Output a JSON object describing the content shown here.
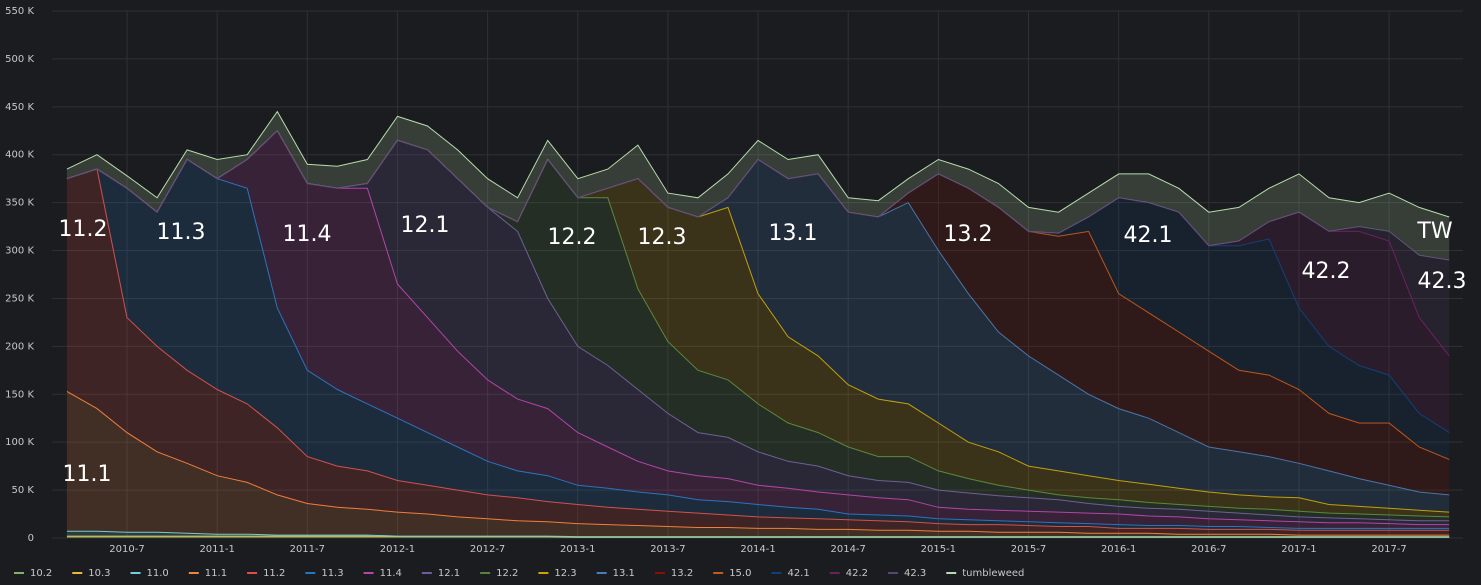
{
  "chart_data": {
    "type": "stacked-area",
    "x": [
      "2010-3",
      "2010-5",
      "2010-7",
      "2010-9",
      "2010-11",
      "2011-1",
      "2011-3",
      "2011-5",
      "2011-7",
      "2011-9",
      "2011-11",
      "2012-1",
      "2012-3",
      "2012-5",
      "2012-7",
      "2012-9",
      "2012-11",
      "2013-1",
      "2013-3",
      "2013-5",
      "2013-7",
      "2013-9",
      "2013-11",
      "2014-1",
      "2014-3",
      "2014-5",
      "2014-7",
      "2014-9",
      "2014-11",
      "2015-1",
      "2015-3",
      "2015-5",
      "2015-7",
      "2015-9",
      "2015-11",
      "2016-1",
      "2016-3",
      "2016-5",
      "2016-7",
      "2016-9",
      "2016-11",
      "2017-1",
      "2017-3",
      "2017-5",
      "2017-7",
      "2017-9",
      "2017-11"
    ],
    "xticks": [
      "2010-7",
      "2011-1",
      "2011-7",
      "2012-1",
      "2012-7",
      "2013-1",
      "2013-7",
      "2014-1",
      "2014-7",
      "2015-1",
      "2015-7",
      "2016-1",
      "2016-7",
      "2017-1",
      "2017-7"
    ],
    "ylim": [
      0,
      550
    ],
    "yticks": [
      0,
      {
        "value": 50,
        "label": "50 K"
      },
      {
        "value": 100,
        "label": "100 K"
      },
      {
        "value": 150,
        "label": "150 K"
      },
      {
        "value": 200,
        "label": "200 K"
      },
      {
        "value": 250,
        "label": "250 K"
      },
      {
        "value": 300,
        "label": "300 K"
      },
      {
        "value": 350,
        "label": "350 K"
      },
      {
        "value": 400,
        "label": "400 K"
      },
      {
        "value": 450,
        "label": "450 K"
      },
      {
        "value": 500,
        "label": "500 K"
      },
      {
        "value": 550,
        "label": "550 K"
      }
    ],
    "grid": true,
    "legend": "bottom",
    "series": [
      {
        "name": "10.2",
        "color": "#7eb26d",
        "values": [
          1,
          1,
          1,
          1,
          1,
          1,
          1,
          1,
          1,
          1,
          1,
          1,
          1,
          1,
          1,
          1,
          1,
          0.5,
          0.5,
          0.5,
          0.5,
          0.5,
          0.5,
          0.5,
          0.5,
          0.5,
          0.5,
          0.5,
          0.5,
          0.5,
          0.5,
          0.5,
          0.5,
          0.5,
          0.5,
          0.5,
          0.5,
          0.5,
          0.5,
          0.5,
          0.5,
          0.5,
          0.5,
          0.5,
          0.5,
          0.5,
          0.5
        ]
      },
      {
        "name": "10.3",
        "color": "#eab839",
        "values": [
          1,
          1,
          1,
          1,
          1,
          1,
          1,
          1,
          1,
          1,
          1,
          0.5,
          0.5,
          0.5,
          0.5,
          0.5,
          0.5,
          0.5,
          0.5,
          0.5,
          0.5,
          0.5,
          0.5,
          0.5,
          0.5,
          0.5,
          0.5,
          0.5,
          0.5,
          0.5,
          0.5,
          0.5,
          0.5,
          0.5,
          0.5,
          0.5,
          0.5,
          0.5,
          0.5,
          0.5,
          0.5,
          0.5,
          0.5,
          0.5,
          0.5,
          0.5,
          0.5
        ]
      },
      {
        "name": "11.0",
        "color": "#6ed0e0",
        "values": [
          5,
          5,
          4,
          4,
          3,
          2,
          2,
          1,
          1,
          1,
          1,
          0.5,
          0.5,
          0.5,
          0.5,
          0.5,
          0.5,
          0.5,
          0.5,
          0.5,
          0.5,
          0.5,
          0.5,
          0.5,
          0.5,
          0.5,
          0.5,
          0.5,
          0.5,
          0.5,
          0.5,
          0.5,
          0.5,
          0.5,
          0.5,
          0.5,
          0.5,
          0.5,
          0.5,
          0.5,
          0.5,
          0.5,
          0.5,
          0.5,
          0.5,
          0.5,
          0.5
        ]
      },
      {
        "name": "11.1",
        "color": "#ef843c",
        "values": [
          146,
          128,
          104,
          84,
          73,
          61,
          54,
          42,
          33,
          29,
          27,
          25,
          23,
          20,
          18,
          16,
          15,
          13.5,
          12.5,
          11.5,
          10.5,
          9.5,
          9.5,
          8.5,
          8.5,
          7.5,
          7.5,
          6.5,
          6.5,
          5.5,
          5.5,
          4.5,
          4.5,
          4.5,
          3.5,
          3.5,
          3.5,
          2.5,
          2.5,
          2.5,
          2.5,
          1.5,
          1.5,
          1.5,
          1.5,
          1.5,
          1.5
        ]
      },
      {
        "name": "11.2",
        "color": "#e24d42",
        "values": [
          222,
          250,
          120,
          110,
          97,
          90,
          82,
          70,
          49,
          43,
          40,
          33,
          30,
          28,
          25,
          24,
          21,
          20,
          18,
          17,
          16,
          15,
          13,
          12,
          11,
          11,
          10,
          10,
          9,
          8,
          7,
          8,
          7,
          6,
          7,
          5,
          5,
          6,
          5,
          5,
          5,
          5,
          5,
          5,
          5,
          5,
          5
        ]
      },
      {
        "name": "11.3",
        "color": "#1f78c1",
        "values": [
          0,
          0,
          135,
          140,
          220,
          220,
          225,
          125,
          90,
          80,
          70,
          65,
          55,
          45,
          35,
          28,
          27,
          20,
          20,
          18,
          17,
          14,
          14,
          13,
          11,
          10,
          6,
          6,
          6,
          5,
          5,
          4,
          4,
          4,
          3,
          4,
          3,
          3,
          3,
          3,
          2,
          2,
          2,
          2,
          2,
          2,
          2
        ]
      },
      {
        "name": "11.4",
        "color": "#ba43a9",
        "values": [
          0,
          0,
          0,
          0,
          0,
          0,
          30,
          185,
          195,
          210,
          225,
          140,
          120,
          100,
          85,
          75,
          70,
          55,
          43,
          32,
          25,
          25,
          24,
          20,
          20,
          18,
          20,
          18,
          17,
          12,
          11,
          11,
          11,
          11,
          11,
          11,
          10,
          9,
          8,
          7,
          7,
          7,
          6,
          6,
          5,
          4,
          4
        ]
      },
      {
        "name": "12.1",
        "color": "#705da0",
        "values": [
          0,
          0,
          0,
          0,
          0,
          0,
          0,
          0,
          0,
          0,
          5,
          150,
          175,
          180,
          180,
          175,
          115,
          90,
          85,
          75,
          60,
          45,
          43,
          35,
          28,
          27,
          20,
          18,
          18,
          18,
          17,
          15,
          14,
          13,
          10,
          8,
          8,
          8,
          8,
          7,
          6,
          5,
          5,
          4,
          4,
          4,
          4
        ]
      },
      {
        "name": "12.2",
        "color": "#508642",
        "values": [
          0,
          0,
          0,
          0,
          0,
          0,
          0,
          0,
          0,
          0,
          0,
          0,
          0,
          0,
          0,
          10,
          145,
          155,
          175,
          105,
          75,
          65,
          60,
          50,
          40,
          35,
          30,
          25,
          27,
          20,
          15,
          11,
          8,
          5,
          6,
          7,
          6,
          5,
          5,
          5,
          6,
          6,
          5,
          5,
          5,
          5,
          4
        ]
      },
      {
        "name": "12.3",
        "color": "#cca300",
        "values": [
          0,
          0,
          0,
          0,
          0,
          0,
          0,
          0,
          0,
          0,
          0,
          0,
          0,
          0,
          0,
          0,
          0,
          0,
          10,
          115,
          140,
          160,
          180,
          115,
          90,
          80,
          65,
          60,
          55,
          50,
          38,
          35,
          25,
          25,
          23,
          20,
          19,
          17,
          15,
          14,
          13,
          14,
          9,
          8,
          7,
          6,
          5
        ]
      },
      {
        "name": "13.1",
        "color": "#447ebc",
        "values": [
          0,
          0,
          0,
          0,
          0,
          0,
          0,
          0,
          0,
          0,
          0,
          0,
          0,
          0,
          0,
          0,
          0,
          0,
          0,
          0,
          0,
          0,
          10,
          140,
          165,
          190,
          180,
          190,
          210,
          180,
          155,
          125,
          115,
          100,
          85,
          75,
          69,
          58,
          47,
          45,
          42,
          36,
          35,
          29,
          24,
          19,
          18
        ]
      },
      {
        "name": "13.2",
        "color": "#890f02",
        "values": [
          0,
          0,
          0,
          0,
          0,
          0,
          0,
          0,
          0,
          0,
          0,
          0,
          0,
          0,
          0,
          0,
          0,
          0,
          0,
          0,
          0,
          0,
          0,
          0,
          0,
          0,
          0,
          0,
          10,
          80,
          110,
          130,
          130,
          145,
          170,
          120,
          110,
          105,
          100,
          85,
          85,
          77,
          60,
          58,
          65,
          47,
          37
        ]
      },
      {
        "name": "15.0",
        "color": "#c15c17",
        "values": [
          0,
          0,
          0,
          0,
          0,
          0,
          0,
          0,
          0,
          0,
          0,
          0,
          0,
          0,
          0,
          0,
          0,
          0,
          0,
          0,
          0,
          0,
          0,
          0,
          0,
          0,
          0,
          0,
          0,
          0,
          0,
          0,
          0,
          0,
          0,
          0,
          0,
          0,
          0,
          0,
          0,
          0,
          0,
          0,
          0,
          0,
          0
        ]
      },
      {
        "name": "42.1",
        "color": "#0a437c",
        "values": [
          0,
          0,
          0,
          0,
          0,
          0,
          0,
          0,
          0,
          0,
          0,
          0,
          0,
          0,
          0,
          0,
          0,
          0,
          0,
          0,
          0,
          0,
          0,
          0,
          0,
          0,
          0,
          0,
          0,
          0,
          0,
          0,
          0,
          3,
          15,
          100,
          115,
          125,
          110,
          130,
          142,
          85,
          70,
          60,
          50,
          35,
          28
        ]
      },
      {
        "name": "42.2",
        "color": "#6d1f62",
        "values": [
          0,
          0,
          0,
          0,
          0,
          0,
          0,
          0,
          0,
          0,
          0,
          0,
          0,
          0,
          0,
          0,
          0,
          0,
          0,
          0,
          0,
          0,
          0,
          0,
          0,
          0,
          0,
          0,
          0,
          0,
          0,
          0,
          0,
          0,
          0,
          0,
          0,
          0,
          0,
          5,
          18,
          100,
          120,
          140,
          140,
          100,
          80
        ]
      },
      {
        "name": "42.3",
        "color": "#584477",
        "values": [
          0,
          0,
          0,
          0,
          0,
          0,
          0,
          0,
          0,
          0,
          0,
          0,
          0,
          0,
          0,
          0,
          0,
          0,
          0,
          0,
          0,
          0,
          0,
          0,
          0,
          0,
          0,
          0,
          0,
          0,
          0,
          0,
          0,
          0,
          0,
          0,
          0,
          0,
          0,
          0,
          0,
          0,
          0,
          5,
          10,
          65,
          100
        ]
      },
      {
        "name": "tumbleweed",
        "color": "#b7dbab",
        "values": [
          10,
          15,
          13,
          15,
          10,
          20,
          5,
          20,
          20,
          23,
          25,
          25,
          25,
          30,
          30,
          25,
          20,
          20,
          20,
          35,
          15,
          20,
          25,
          20,
          20,
          20,
          15,
          17,
          15,
          15,
          20,
          25,
          25,
          22,
          25,
          25,
          30,
          25,
          35,
          35,
          35,
          40,
          35,
          25,
          40,
          50,
          45
        ]
      }
    ],
    "annotations": [
      "11.1",
      "11.2",
      "11.3",
      "11.4",
      "12.1",
      "12.2",
      "12.3",
      "13.1",
      "13.2",
      "42.1",
      "42.2",
      "42.3",
      "TW"
    ]
  }
}
